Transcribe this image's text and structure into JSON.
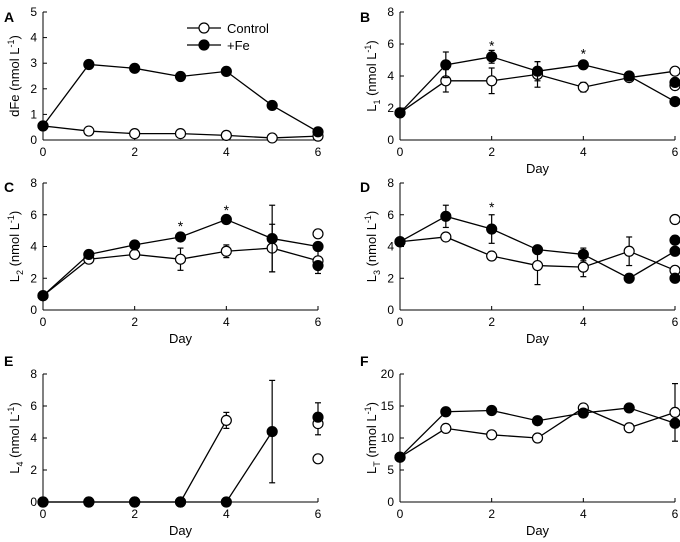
{
  "figure": {
    "legend": {
      "control_label": "Control",
      "fe_label": "+Fe"
    },
    "series_colors": {
      "control": "#ffffff",
      "fe": "#000000"
    }
  },
  "chart_data": [
    {
      "id": "A",
      "panel_label": "A",
      "type": "line",
      "ylabel": "dFe (nmol L⁻¹)",
      "ylabel_main": "dFe (nmol L",
      "ylabel_sub": "",
      "ylabel_sup": "-1",
      "ylabel_end": ")",
      "xlabel": "",
      "xlim": [
        0,
        6
      ],
      "ylim": [
        0,
        5
      ],
      "xticks": [
        "0",
        "2",
        "4",
        "6"
      ],
      "yticks": [
        "0",
        "1",
        "2",
        "3",
        "4",
        "5"
      ],
      "show_legend": true,
      "series": [
        {
          "name": "Control",
          "x": [
            0,
            1,
            2,
            3,
            4,
            5,
            6
          ],
          "y": [
            0.55,
            0.35,
            0.25,
            0.25,
            0.18,
            0.08,
            0.15
          ],
          "err": [
            0,
            0,
            0,
            0,
            0,
            0,
            0
          ]
        },
        {
          "name": "+Fe",
          "x": [
            0,
            1,
            2,
            3,
            4,
            5,
            6
          ],
          "y": [
            0.55,
            2.95,
            2.8,
            2.48,
            2.68,
            1.35,
            0.32
          ],
          "err": [
            0,
            0.1,
            0,
            0.08,
            0.15,
            0,
            0
          ]
        }
      ],
      "extra_points": [],
      "stars": []
    },
    {
      "id": "B",
      "panel_label": "B",
      "type": "line",
      "ylabel": "L₁ (nmol L⁻¹)",
      "ylabel_main": "L",
      "ylabel_sub": "1",
      "ylabel_sup": "-1",
      "ylabel_end": " (nmol L",
      "xlabel": "Day",
      "xlim": [
        0,
        6
      ],
      "ylim": [
        0,
        8
      ],
      "xticks": [
        "0",
        "2",
        "4",
        "6"
      ],
      "yticks": [
        "0",
        "2",
        "4",
        "6",
        "8"
      ],
      "show_legend": false,
      "series": [
        {
          "name": "Control",
          "x": [
            0,
            1,
            2,
            3,
            4,
            5,
            6
          ],
          "y": [
            1.7,
            3.7,
            3.7,
            4.1,
            3.3,
            3.9,
            4.3
          ],
          "err": [
            0,
            0.7,
            0.8,
            0.8,
            0.3,
            0,
            0
          ]
        },
        {
          "name": "+Fe",
          "x": [
            0,
            1,
            2,
            3,
            4,
            5,
            6
          ],
          "y": [
            1.7,
            4.7,
            5.2,
            4.3,
            4.7,
            4.0,
            2.4
          ],
          "err": [
            0,
            0.8,
            0.4,
            0.6,
            0,
            0,
            0
          ]
        }
      ],
      "extra_points": [
        {
          "series": "Control",
          "x": 6,
          "y": 3.4
        },
        {
          "series": "Fe",
          "x": 6,
          "y": 3.6
        }
      ],
      "stars": [
        {
          "x": 2,
          "y": 5.9,
          "text": "*"
        },
        {
          "x": 4,
          "y": 5.4,
          "text": "*"
        }
      ]
    },
    {
      "id": "C",
      "panel_label": "C",
      "type": "line",
      "ylabel": "L₂ (nmol L⁻¹)",
      "ylabel_main": "L",
      "ylabel_sub": "2",
      "ylabel_sup": "-1",
      "ylabel_end": " (nmol L",
      "xlabel": "Day",
      "xlim": [
        0,
        6
      ],
      "ylim": [
        0,
        8
      ],
      "xticks": [
        "0",
        "2",
        "4",
        "6"
      ],
      "yticks": [
        "0",
        "2",
        "4",
        "6",
        "8"
      ],
      "show_legend": false,
      "series": [
        {
          "name": "Control",
          "x": [
            0,
            1,
            2,
            3,
            4,
            5,
            6
          ],
          "y": [
            0.9,
            3.2,
            3.5,
            3.2,
            3.7,
            3.9,
            3.1
          ],
          "err": [
            0,
            0,
            0,
            0.7,
            0.4,
            1.5,
            0.8
          ]
        },
        {
          "name": "+Fe",
          "x": [
            0,
            1,
            2,
            3,
            4,
            5,
            6
          ],
          "y": [
            0.9,
            3.5,
            4.1,
            4.6,
            5.7,
            4.5,
            4.0
          ],
          "err": [
            0,
            0,
            0,
            0,
            0,
            2.1,
            0
          ]
        }
      ],
      "extra_points": [
        {
          "series": "Control",
          "x": 6,
          "y": 4.8
        },
        {
          "series": "Fe",
          "x": 6,
          "y": 2.8
        }
      ],
      "stars": [
        {
          "x": 3,
          "y": 5.3,
          "text": "*"
        },
        {
          "x": 4,
          "y": 6.3,
          "text": "*"
        }
      ]
    },
    {
      "id": "D",
      "panel_label": "D",
      "type": "line",
      "ylabel": "L₃ (nmol L⁻¹)",
      "ylabel_main": "L",
      "ylabel_sub": "3",
      "ylabel_sup": "-1",
      "ylabel_end": " (nmol L",
      "xlabel": "Day",
      "xlim": [
        0,
        6
      ],
      "ylim": [
        0,
        8
      ],
      "xticks": [
        "0",
        "2",
        "4",
        "6"
      ],
      "yticks": [
        "0",
        "2",
        "4",
        "6",
        "8"
      ],
      "show_legend": false,
      "series": [
        {
          "name": "Control",
          "x": [
            0,
            1,
            2,
            3,
            4,
            5,
            6
          ],
          "y": [
            4.3,
            4.6,
            3.4,
            2.8,
            2.7,
            3.7,
            2.5
          ],
          "err": [
            0,
            0,
            0,
            1.2,
            0.6,
            0.9,
            0
          ]
        },
        {
          "name": "+Fe",
          "x": [
            0,
            1,
            2,
            3,
            4,
            5,
            6
          ],
          "y": [
            4.3,
            5.9,
            5.1,
            3.8,
            3.5,
            2.0,
            3.7
          ],
          "err": [
            0,
            0.7,
            0.9,
            0,
            0.4,
            0,
            0
          ]
        }
      ],
      "extra_points": [
        {
          "series": "Control",
          "x": 6,
          "y": 5.7
        },
        {
          "series": "Fe",
          "x": 6,
          "y": 4.4
        },
        {
          "series": "Fe",
          "x": 6,
          "y": 2.0
        }
      ],
      "stars": [
        {
          "x": 2,
          "y": 6.5,
          "text": "*"
        }
      ]
    },
    {
      "id": "E",
      "panel_label": "E",
      "type": "line",
      "ylabel": "L₄ (nmol L⁻¹)",
      "ylabel_main": "L",
      "ylabel_sub": "4",
      "ylabel_sup": "-1",
      "ylabel_end": " (nmol L",
      "xlabel": "Day",
      "xlim": [
        0,
        6
      ],
      "ylim": [
        0,
        8
      ],
      "xticks": [
        "0",
        "2",
        "4",
        "6"
      ],
      "yticks": [
        "0",
        "2",
        "4",
        "6",
        "8"
      ],
      "show_legend": false,
      "series": [
        {
          "name": "Control",
          "x": [
            0,
            1,
            2,
            3,
            4
          ],
          "y": [
            0,
            0,
            0,
            0,
            5.1
          ],
          "err": [
            0,
            0,
            0,
            0,
            0.5
          ]
        },
        {
          "name": "+Fe",
          "x": [
            0,
            1,
            2,
            3,
            4,
            5
          ],
          "y": [
            0,
            0,
            0,
            0,
            0,
            4.4
          ],
          "err": [
            0,
            0,
            0,
            0,
            0,
            3.2
          ]
        }
      ],
      "extra_points": [
        {
          "series": "Control",
          "x": 6,
          "y": 4.9
        },
        {
          "series": "Control",
          "x": 6,
          "y": 2.7
        },
        {
          "series": "Fe",
          "x": 6,
          "y": 5.3
        }
      ],
      "extra_errors": [
        {
          "x": 6,
          "lo": 4.2,
          "hi": 6.2
        }
      ],
      "stars": []
    },
    {
      "id": "F",
      "panel_label": "F",
      "type": "line",
      "ylabel": "L_T (nmol L⁻¹)",
      "ylabel_main": "L",
      "ylabel_sub": "T",
      "ylabel_sup": "-1",
      "ylabel_end": " (nmol L",
      "xlabel": "Day",
      "xlim": [
        0,
        6
      ],
      "ylim": [
        0,
        20
      ],
      "xticks": [
        "0",
        "2",
        "4",
        "6"
      ],
      "yticks": [
        "0",
        "5",
        "10",
        "15",
        "20"
      ],
      "show_legend": false,
      "series": [
        {
          "name": "Control",
          "x": [
            0,
            1,
            2,
            3,
            4,
            5,
            6
          ],
          "y": [
            7.0,
            11.5,
            10.5,
            10.0,
            14.7,
            11.6,
            14.0
          ],
          "err": [
            0,
            0,
            0,
            0,
            0,
            0,
            4.5
          ]
        },
        {
          "name": "+Fe",
          "x": [
            0,
            1,
            2,
            3,
            4,
            5,
            6
          ],
          "y": [
            7.0,
            14.1,
            14.3,
            12.7,
            13.9,
            14.7,
            12.3
          ],
          "err": [
            0,
            0,
            0,
            0,
            0,
            0,
            0
          ]
        }
      ],
      "extra_points": [],
      "stars": []
    }
  ]
}
